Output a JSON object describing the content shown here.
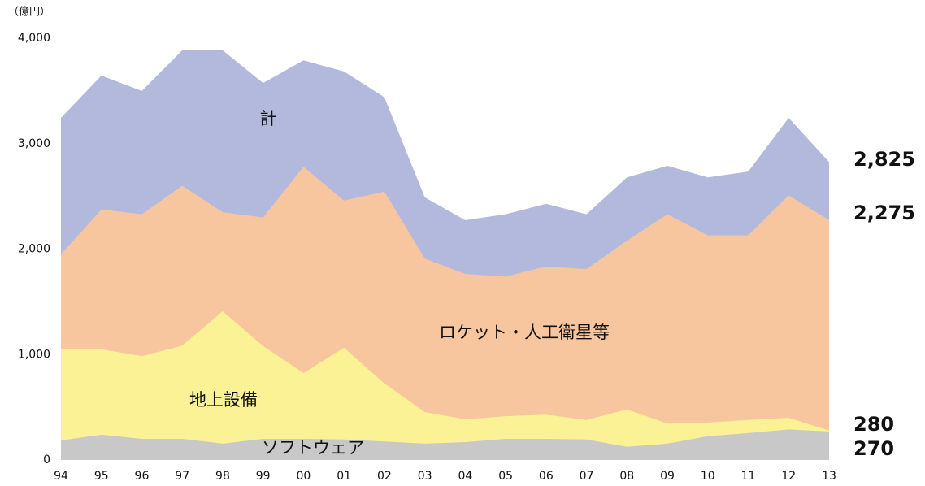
{
  "chart_data": {
    "type": "area",
    "unit": "（億円）",
    "categories": [
      "94",
      "95",
      "96",
      "97",
      "98",
      "99",
      "00",
      "01",
      "02",
      "03",
      "04",
      "05",
      "06",
      "07",
      "08",
      "09",
      "10",
      "11",
      "12",
      "13"
    ],
    "series": [
      {
        "name": "計",
        "color": "#b3b9dc",
        "values": [
          3245,
          3645,
          3500,
          3885,
          3885,
          3575,
          3790,
          3685,
          3440,
          2490,
          2275,
          2330,
          2430,
          2330,
          2680,
          2790,
          2680,
          2735,
          3245,
          2825
        ],
        "value_labels": [
          null,
          null,
          null,
          null,
          null,
          null,
          null,
          null,
          null,
          null,
          null,
          null,
          null,
          null,
          null,
          null,
          null,
          null,
          null,
          "2,825"
        ]
      },
      {
        "name": "ロケット・人工衛星等",
        "color": "#f8c69e",
        "values": [
          1950,
          2375,
          2330,
          2600,
          2350,
          2300,
          2780,
          2460,
          2545,
          1910,
          1765,
          1740,
          1835,
          1810,
          2080,
          2330,
          2130,
          2130,
          2510,
          2275
        ],
        "value_labels": [
          null,
          null,
          null,
          null,
          null,
          null,
          null,
          null,
          null,
          null,
          null,
          null,
          null,
          null,
          null,
          null,
          null,
          null,
          null,
          "2,275"
        ]
      },
      {
        "name": "地上設備",
        "color": "#fbf195",
        "values": [
          1050,
          1050,
          985,
          1085,
          1410,
          1080,
          825,
          1065,
          725,
          455,
          385,
          415,
          430,
          380,
          480,
          345,
          355,
          380,
          400,
          280
        ],
        "value_labels": [
          null,
          null,
          null,
          null,
          null,
          null,
          null,
          null,
          null,
          null,
          null,
          null,
          null,
          null,
          null,
          null,
          null,
          null,
          null,
          "280"
        ]
      },
      {
        "name": "ソフトウェア",
        "color": "#c8c8c8",
        "values": [
          185,
          240,
          200,
          200,
          155,
          200,
          200,
          195,
          175,
          155,
          170,
          200,
          200,
          195,
          125,
          155,
          225,
          255,
          290,
          270
        ],
        "value_labels": [
          null,
          null,
          null,
          null,
          null,
          null,
          null,
          null,
          null,
          null,
          null,
          null,
          null,
          null,
          null,
          null,
          null,
          null,
          null,
          "270"
        ]
      }
    ],
    "ylim": [
      0,
      4000
    ],
    "yticks": [
      0,
      {
        "value": 1000,
        "label": "1,000"
      },
      {
        "value": 2000,
        "label": "2,000"
      },
      {
        "value": 3000,
        "label": "3,000"
      },
      {
        "value": 4000,
        "label": "4,000"
      }
    ],
    "grid": false
  }
}
